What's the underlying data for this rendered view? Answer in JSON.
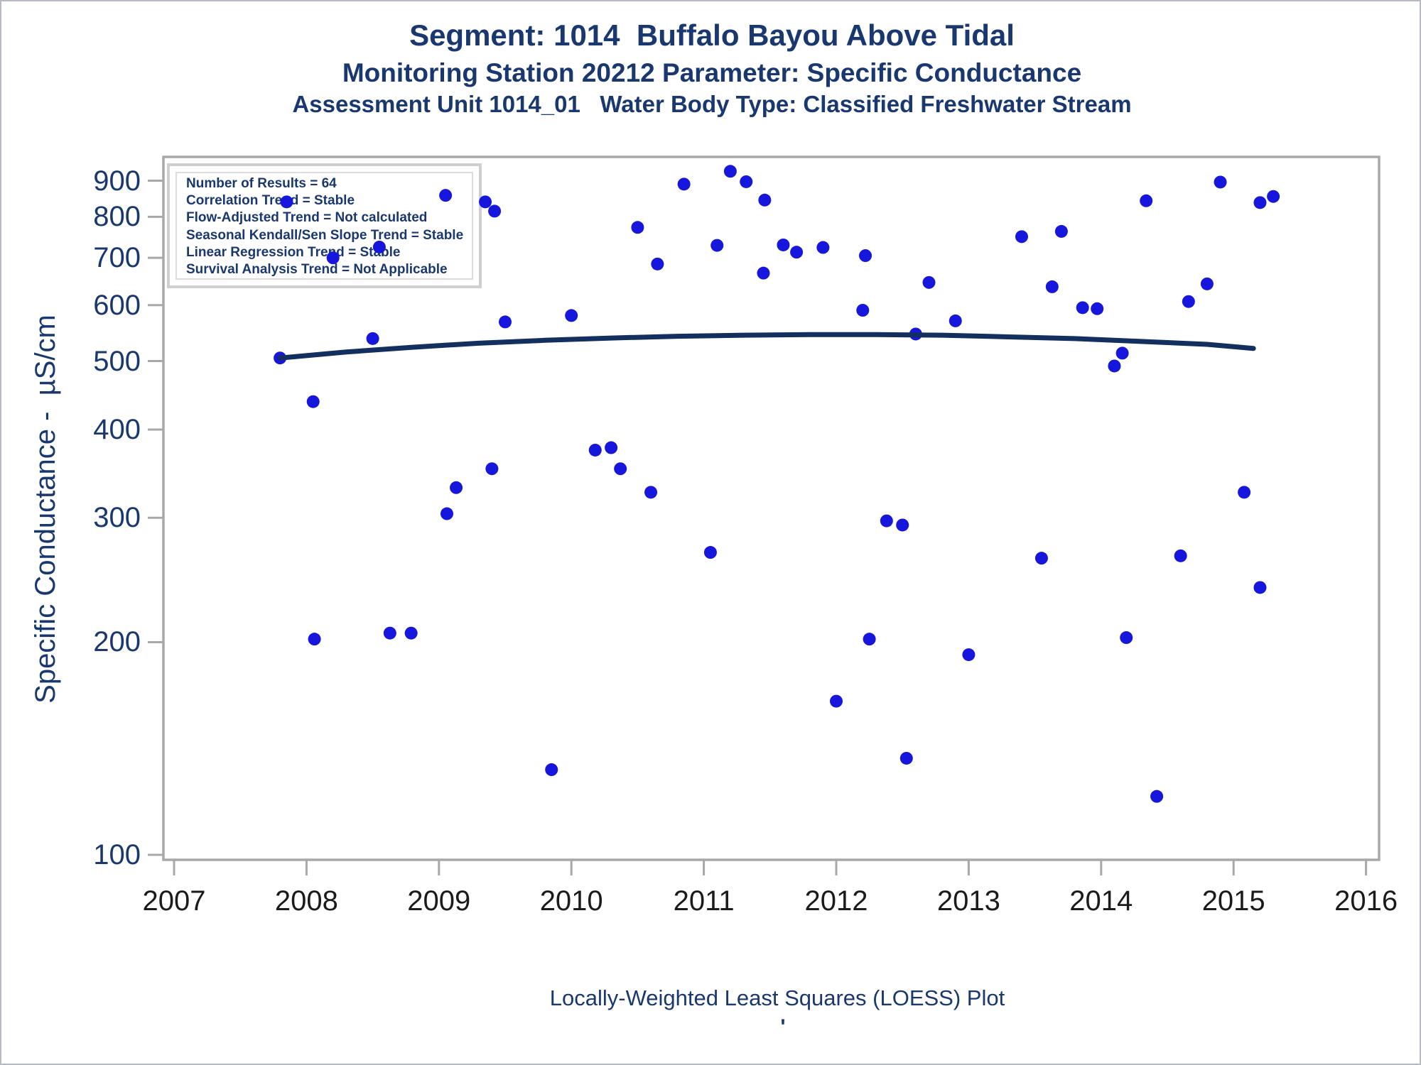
{
  "titles": {
    "line1": "Segment: 1014  Buffalo Bayou Above Tidal",
    "line2": "Monitoring Station 20212 Parameter: Specific Conductance",
    "line3": "Assessment Unit 1014_01   Water Body Type: Classified Freshwater Stream"
  },
  "stats_box": {
    "lines": [
      "Number of Results = 64",
      "Correlation Trend = Stable",
      "Flow-Adjusted Trend = Not calculated",
      "Seasonal Kendall/Sen Slope Trend = Stable",
      "Linear Regression Trend = Stable",
      "Survival Analysis Trend = Not Applicable"
    ]
  },
  "caption": "Locally-Weighted Least Squares (LOESS) Plot",
  "footnote_mark": "'",
  "colors": {
    "title_text": "#1A3870",
    "point": "#1616DD",
    "loess": "#132F5F",
    "frame": "#A8A8A8",
    "x_tick_label": "#1b1b1b",
    "legend_border": "#CFCFCF"
  },
  "chart_data": {
    "type": "scatter",
    "title": "Segment: 1014  Buffalo Bayou Above Tidal",
    "xlabel": "",
    "ylabel": "Specific Conductance -  µS/cm",
    "x_axis": {
      "ticks": [
        2007,
        2008,
        2009,
        2010,
        2011,
        2012,
        2013,
        2014,
        2015,
        2016
      ],
      "range": [
        2006.9,
        2016.1
      ]
    },
    "y_axis": {
      "scale": "log",
      "ticks": [
        100,
        200,
        300,
        400,
        500,
        600,
        700,
        800,
        900
      ],
      "range": [
        98,
        970
      ]
    },
    "grid": false,
    "legend_position": "top-left-inside",
    "series": [
      {
        "name": "observations",
        "type": "scatter",
        "points": [
          [
            2007.8,
            505
          ],
          [
            2007.85,
            840
          ],
          [
            2008.05,
            438
          ],
          [
            2008.06,
            202
          ],
          [
            2008.2,
            700
          ],
          [
            2008.5,
            538
          ],
          [
            2008.55,
            725
          ],
          [
            2008.63,
            206
          ],
          [
            2008.79,
            206
          ],
          [
            2009.05,
            858
          ],
          [
            2009.06,
            304
          ],
          [
            2009.13,
            331
          ],
          [
            2009.35,
            840
          ],
          [
            2009.42,
            815
          ],
          [
            2009.4,
            352
          ],
          [
            2009.5,
            568
          ],
          [
            2009.85,
            132
          ],
          [
            2010.0,
            580
          ],
          [
            2010.18,
            374
          ],
          [
            2010.3,
            377
          ],
          [
            2010.37,
            352
          ],
          [
            2010.5,
            773
          ],
          [
            2010.6,
            326
          ],
          [
            2010.65,
            686
          ],
          [
            2010.85,
            890
          ],
          [
            2011.05,
            268
          ],
          [
            2011.1,
            729
          ],
          [
            2011.2,
            928
          ],
          [
            2011.32,
            897
          ],
          [
            2011.45,
            666
          ],
          [
            2011.46,
            845
          ],
          [
            2011.6,
            730
          ],
          [
            2011.7,
            713
          ],
          [
            2011.9,
            724
          ],
          [
            2012.0,
            165
          ],
          [
            2012.2,
            590
          ],
          [
            2012.22,
            705
          ],
          [
            2012.25,
            202
          ],
          [
            2012.38,
            297
          ],
          [
            2012.5,
            293
          ],
          [
            2012.53,
            137
          ],
          [
            2012.6,
            546
          ],
          [
            2012.7,
            646
          ],
          [
            2012.9,
            570
          ],
          [
            2013.0,
            192
          ],
          [
            2013.4,
            750
          ],
          [
            2013.55,
            263
          ],
          [
            2013.63,
            637
          ],
          [
            2013.7,
            763
          ],
          [
            2013.86,
            595
          ],
          [
            2013.97,
            593
          ],
          [
            2014.1,
            492
          ],
          [
            2014.16,
            513
          ],
          [
            2014.19,
            203
          ],
          [
            2014.34,
            843
          ],
          [
            2014.42,
            121
          ],
          [
            2014.6,
            265
          ],
          [
            2014.66,
            607
          ],
          [
            2014.8,
            643
          ],
          [
            2014.9,
            896
          ],
          [
            2015.08,
            326
          ],
          [
            2015.2,
            838
          ],
          [
            2015.2,
            239
          ],
          [
            2015.3,
            855
          ]
        ]
      },
      {
        "name": "loess-fit",
        "type": "line",
        "points": [
          [
            2007.8,
            505
          ],
          [
            2008.3,
            515
          ],
          [
            2008.8,
            523
          ],
          [
            2009.3,
            530
          ],
          [
            2009.8,
            535
          ],
          [
            2010.3,
            539
          ],
          [
            2010.8,
            542
          ],
          [
            2011.3,
            544
          ],
          [
            2011.8,
            545
          ],
          [
            2012.3,
            545
          ],
          [
            2012.8,
            544
          ],
          [
            2013.3,
            541
          ],
          [
            2013.8,
            538
          ],
          [
            2014.3,
            533
          ],
          [
            2014.8,
            528
          ],
          [
            2015.15,
            521
          ]
        ]
      }
    ]
  }
}
